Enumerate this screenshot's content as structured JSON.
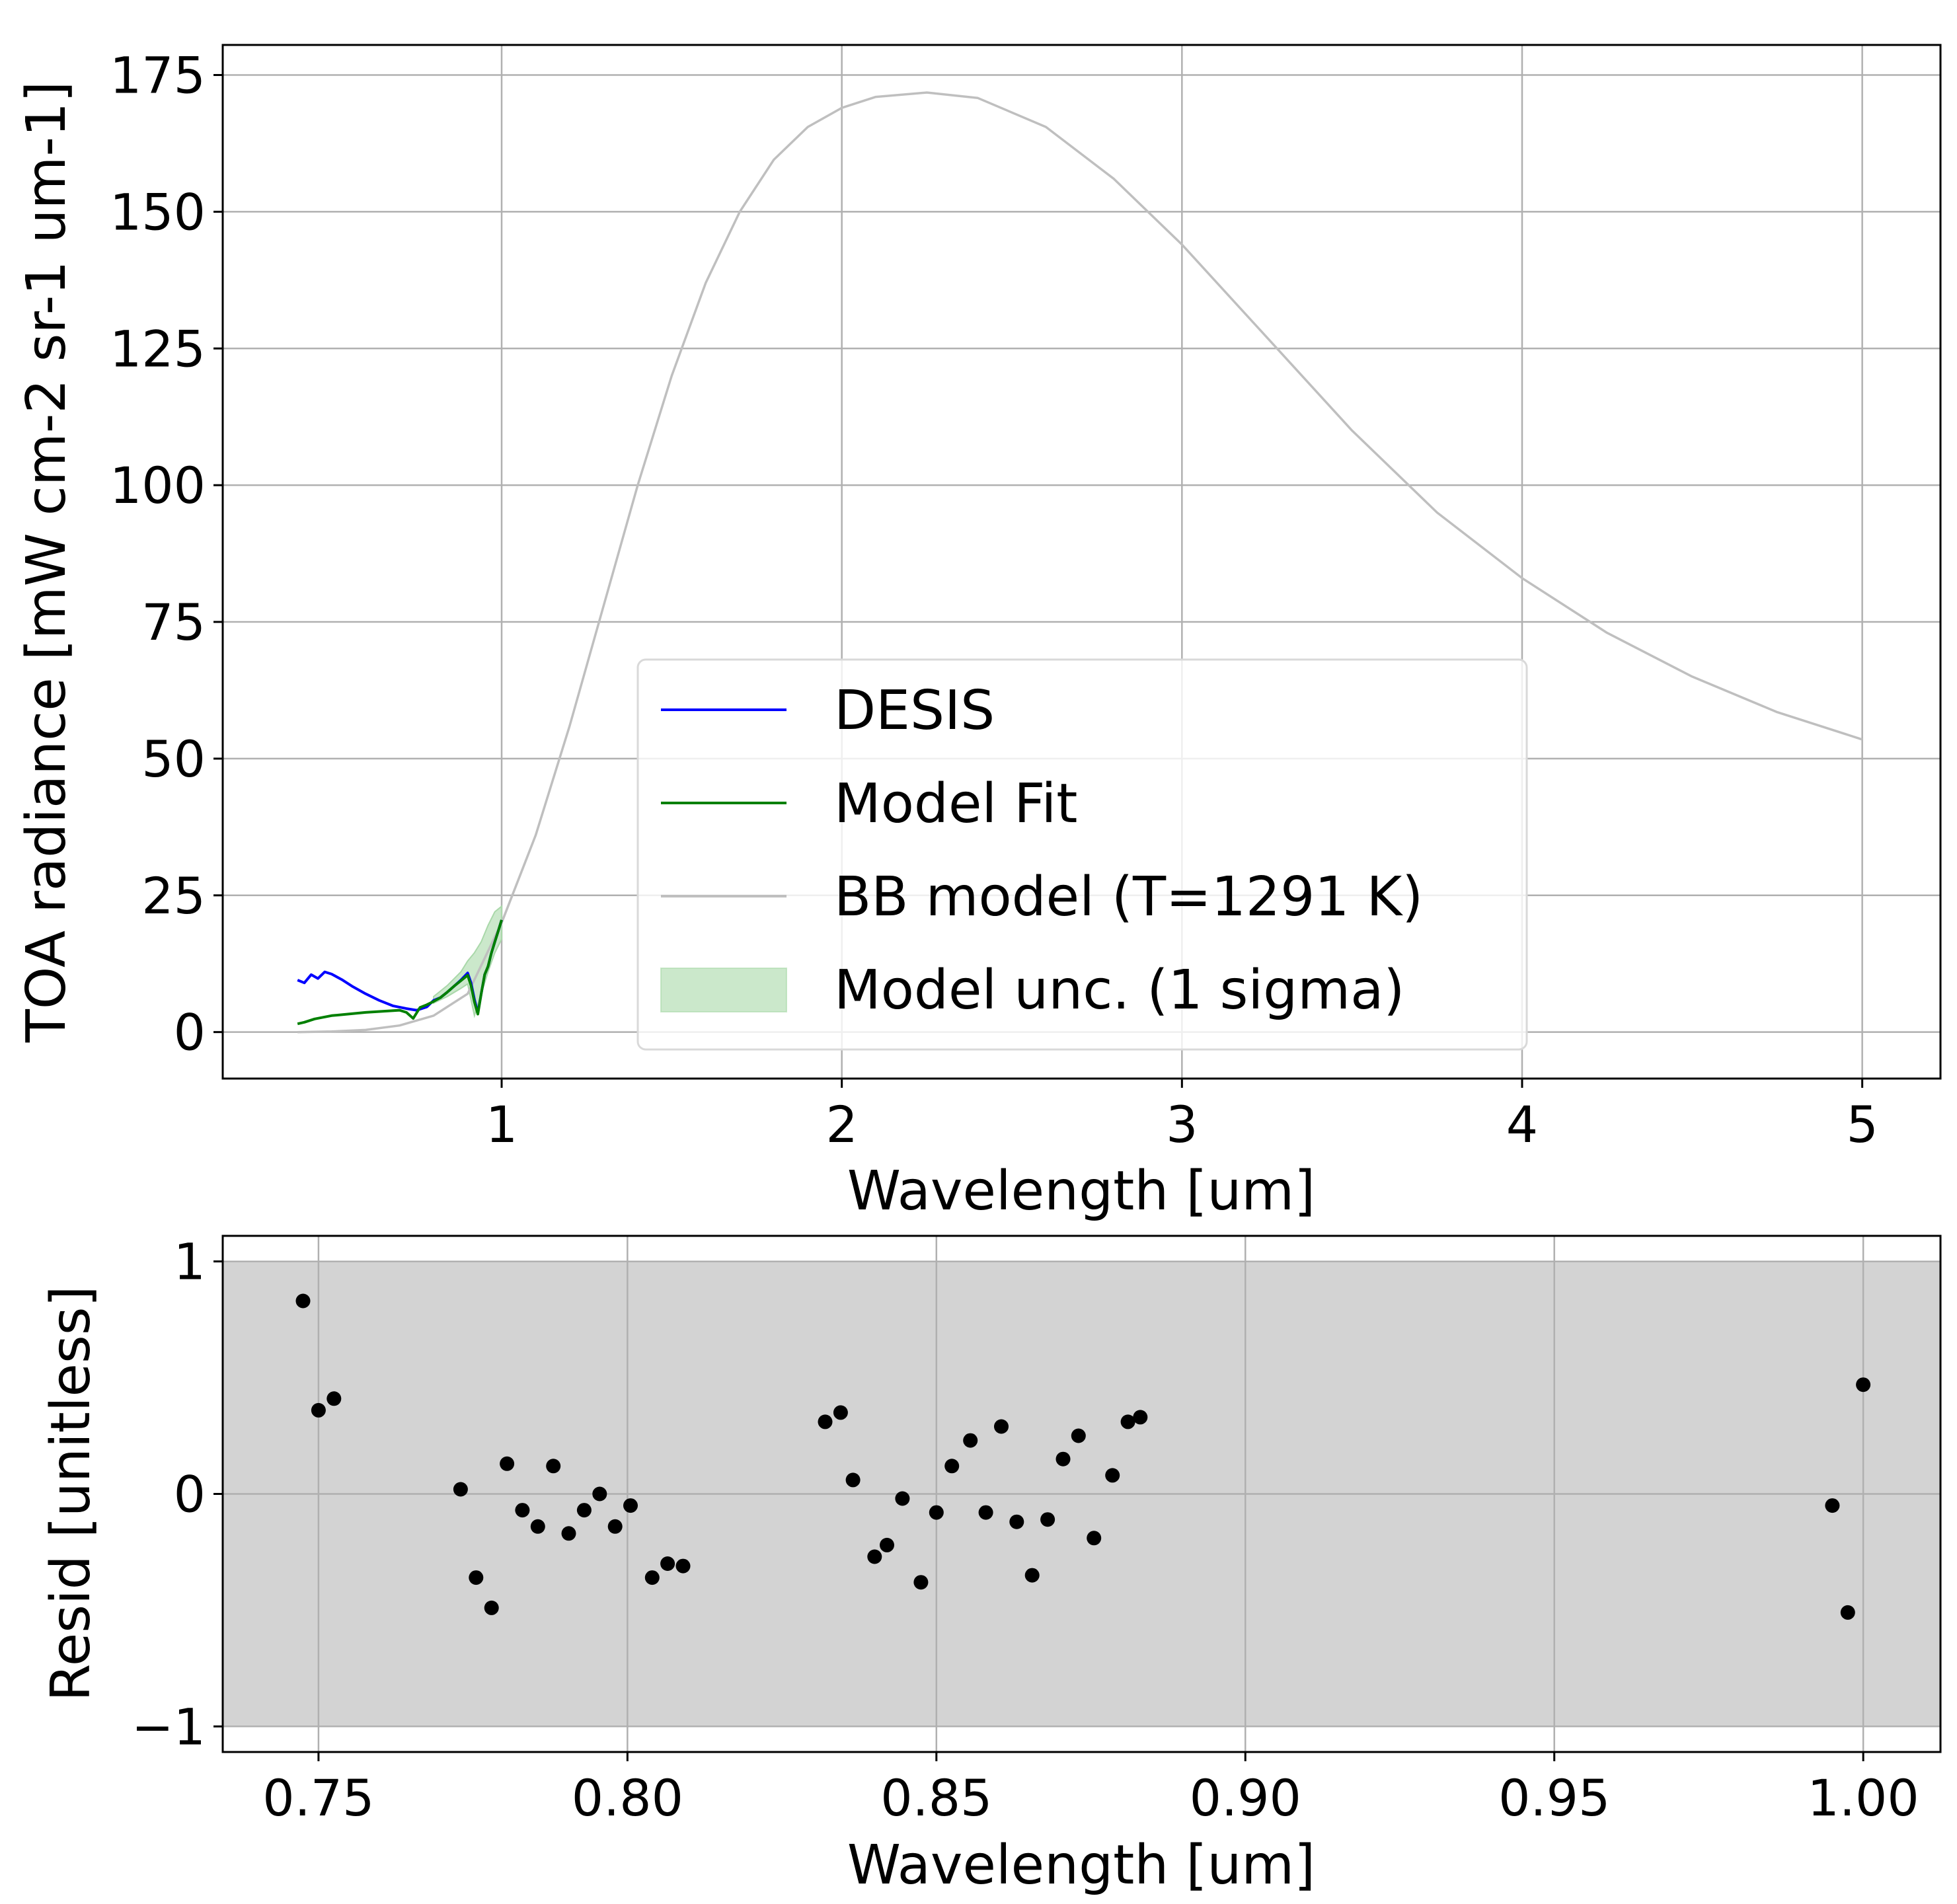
{
  "colors": {
    "desis": "#0000ff",
    "model_fit": "#008000",
    "bb_model": "#bfbfbf",
    "uncertainty": "#a9d8a9",
    "resid_band": "#d3d3d3",
    "resid_points": "#000000",
    "grid": "#b0b0b0"
  },
  "chart_data": [
    {
      "type": "line",
      "name": "radiance-panel",
      "xlabel": "Wavelength [um]",
      "ylabel": "TOA radiance [mW cm-2 sr-1 um-1]",
      "xlim": [
        0.18,
        5.23
      ],
      "ylim": [
        -8.5,
        180.5
      ],
      "xticks": [
        1,
        2,
        3,
        4,
        5
      ],
      "xtick_labels": [
        "1",
        "2",
        "3",
        "4",
        "5"
      ],
      "yticks": [
        0,
        25,
        50,
        75,
        100,
        125,
        150,
        175
      ],
      "ytick_labels": [
        "0",
        "25",
        "50",
        "75",
        "100",
        "125",
        "150",
        "175"
      ],
      "grid": true,
      "legend": {
        "placement": "lower-center",
        "entries": [
          {
            "label": "DESIS",
            "kind": "line",
            "color_key": "desis"
          },
          {
            "label": "Model Fit",
            "kind": "line",
            "color_key": "model_fit"
          },
          {
            "label": "BB model (T=1291 K)",
            "kind": "line",
            "color_key": "bb_model"
          },
          {
            "label": "Model unc. (1 sigma)",
            "kind": "patch",
            "color_key": "uncertainty"
          }
        ]
      },
      "series": [
        {
          "name": "DESIS",
          "x": [
            0.4,
            0.42,
            0.44,
            0.46,
            0.48,
            0.5,
            0.53,
            0.56,
            0.6,
            0.64,
            0.68,
            0.72,
            0.75,
            0.78,
            0.8,
            0.82,
            0.84,
            0.86,
            0.88,
            0.9,
            0.91,
            0.92,
            0.93,
            0.94,
            0.95,
            0.96,
            0.97,
            0.98,
            0.99,
            1.0
          ],
          "y": [
            9.5,
            9.0,
            10.5,
            9.8,
            11.0,
            10.6,
            9.6,
            8.4,
            7.0,
            5.8,
            4.8,
            4.3,
            4.0,
            4.6,
            5.8,
            6.3,
            7.3,
            8.4,
            9.5,
            10.8,
            9.0,
            6.0,
            3.5,
            7.0,
            10.5,
            12.0,
            14.5,
            16.5,
            18.5,
            20.5
          ]
        },
        {
          "name": "Model Fit",
          "x": [
            0.4,
            0.42,
            0.45,
            0.5,
            0.55,
            0.6,
            0.65,
            0.7,
            0.72,
            0.74,
            0.76,
            0.78,
            0.8,
            0.82,
            0.84,
            0.86,
            0.88,
            0.9,
            0.91,
            0.92,
            0.93,
            0.94,
            0.95,
            0.96,
            0.97,
            0.98,
            0.99,
            1.0
          ],
          "y": [
            1.5,
            1.8,
            2.4,
            3.0,
            3.3,
            3.6,
            3.8,
            4.0,
            3.6,
            2.5,
            4.5,
            5.0,
            5.6,
            6.3,
            7.3,
            8.4,
            9.4,
            10.4,
            8.5,
            5.5,
            3.3,
            7.0,
            10.5,
            12.0,
            14.5,
            16.5,
            18.5,
            20.5
          ]
        },
        {
          "name": "BB model (T=1291 K)",
          "x": [
            0.4,
            0.5,
            0.6,
            0.7,
            0.8,
            0.9,
            1.0,
            1.1,
            1.2,
            1.3,
            1.4,
            1.5,
            1.6,
            1.7,
            1.8,
            1.9,
            2.0,
            2.1,
            2.25,
            2.4,
            2.6,
            2.8,
            3.0,
            3.25,
            3.5,
            3.75,
            4.0,
            4.25,
            4.5,
            4.75,
            5.0
          ],
          "y": [
            0.0,
            0.1,
            0.4,
            1.2,
            3.0,
            7.0,
            20.0,
            36.0,
            56.0,
            78.0,
            100.0,
            120.0,
            137.0,
            150.0,
            159.5,
            165.5,
            169.0,
            171.0,
            171.8,
            170.8,
            165.5,
            156.0,
            144.0,
            127.0,
            110.0,
            95.0,
            83.0,
            73.0,
            65.0,
            58.5,
            53.5
          ]
        }
      ],
      "uncertainty_band": {
        "name": "Model unc. (1 sigma)",
        "x": [
          0.8,
          0.84,
          0.88,
          0.9,
          0.92,
          0.94,
          0.96,
          0.98,
          1.0
        ],
        "lower": [
          5.3,
          6.5,
          8.0,
          8.8,
          3.0,
          7.0,
          11.0,
          14.5,
          17.0
        ],
        "upper": [
          6.5,
          8.5,
          11.0,
          13.0,
          14.5,
          16.5,
          19.5,
          22.0,
          23.0
        ]
      }
    },
    {
      "type": "scatter",
      "name": "residual-panel",
      "xlabel": "Wavelength [um]",
      "ylabel": "Resid [unitless]",
      "xlim": [
        0.7345,
        1.0125
      ],
      "ylim": [
        -1.11,
        1.11
      ],
      "xticks": [
        0.75,
        0.8,
        0.85,
        0.9,
        0.95,
        1.0
      ],
      "xtick_labels": [
        "0.75",
        "0.80",
        "0.85",
        "0.90",
        "0.95",
        "1.00"
      ],
      "yticks": [
        -1,
        0,
        1
      ],
      "ytick_labels": [
        "−1",
        "0",
        "1"
      ],
      "grid": true,
      "band": {
        "from": -1,
        "to": 1
      },
      "points": {
        "x": [
          0.7475,
          0.75,
          0.7525,
          0.773,
          0.7755,
          0.778,
          0.7805,
          0.783,
          0.7855,
          0.788,
          0.7905,
          0.793,
          0.7955,
          0.798,
          0.8005,
          0.804,
          0.8065,
          0.809,
          0.832,
          0.8345,
          0.8365,
          0.84,
          0.842,
          0.8445,
          0.8475,
          0.85,
          0.8525,
          0.8555,
          0.858,
          0.8605,
          0.863,
          0.8655,
          0.868,
          0.8705,
          0.873,
          0.8755,
          0.8785,
          0.881,
          0.883,
          0.995,
          0.9975,
          1.0
        ],
        "y": [
          0.83,
          0.36,
          0.41,
          0.02,
          -0.36,
          -0.49,
          0.13,
          -0.07,
          -0.14,
          0.12,
          -0.17,
          -0.07,
          0.0,
          -0.14,
          -0.05,
          -0.36,
          -0.3,
          -0.31,
          0.31,
          0.35,
          0.06,
          -0.27,
          -0.22,
          -0.02,
          -0.38,
          -0.08,
          0.12,
          0.23,
          -0.08,
          0.29,
          -0.12,
          -0.35,
          -0.11,
          0.15,
          0.25,
          -0.19,
          0.08,
          0.31,
          0.33,
          -0.05,
          -0.51,
          0.47
        ]
      }
    }
  ]
}
